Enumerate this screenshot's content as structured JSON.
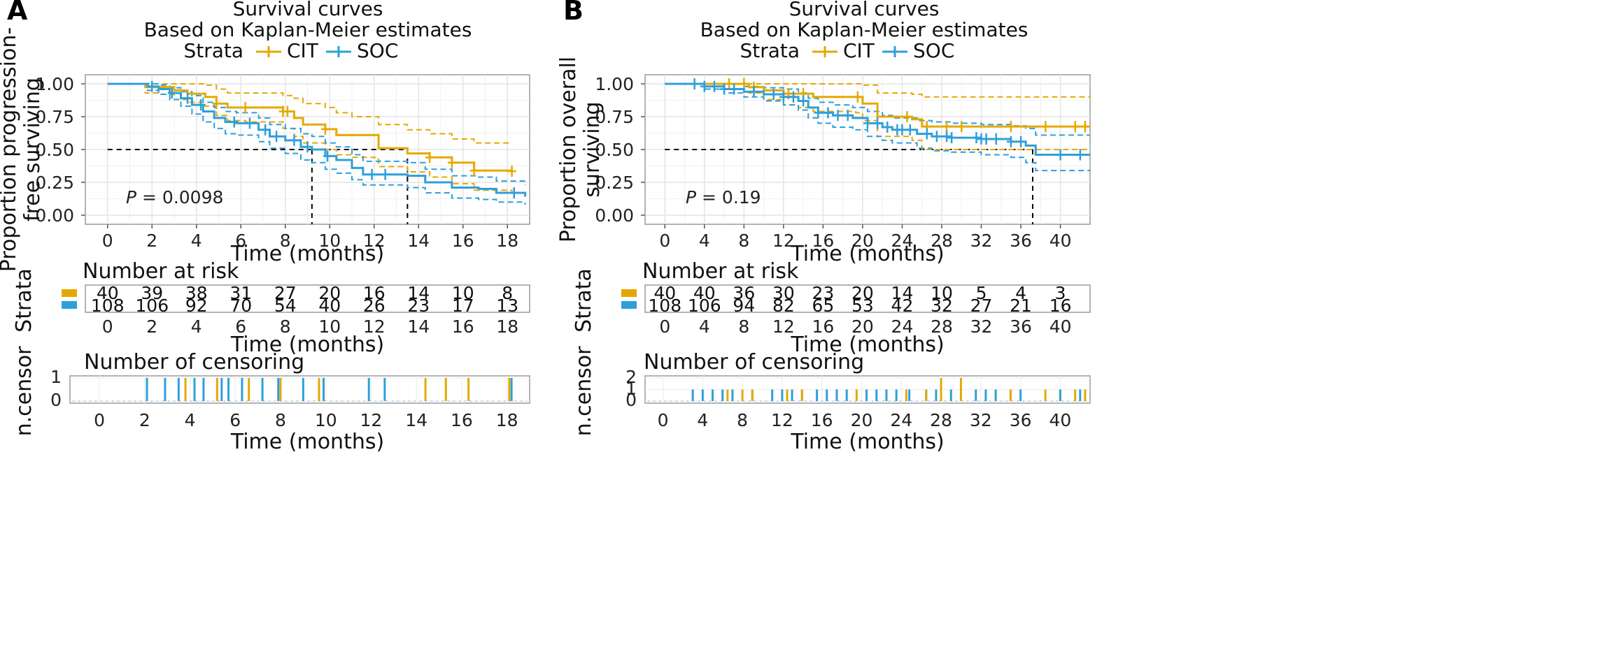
{
  "colors": {
    "CIT": "#E6A800",
    "SOC": "#2E9FDA",
    "grid": "#E4E4E4",
    "frame": "#9A9A9A",
    "ref": "#000000"
  },
  "panels": [
    {
      "letter": "A",
      "title1": "Survival curves",
      "title2": "Based on Kaplan-Meier estimates",
      "legend": {
        "label": "Strata",
        "items": [
          "CIT",
          "SOC"
        ]
      },
      "ylabel_line1": "Proportion progression-",
      "ylabel_line2": "free surviving",
      "xlabel": "Time (months)",
      "pvalue_label": "P",
      "pvalue_rest": " = 0.0098",
      "yticks": [
        "0.00",
        "0.25",
        "0.50",
        "0.75",
        "1.00"
      ],
      "xticks": [
        "0",
        "2",
        "4",
        "6",
        "8",
        "10",
        "12",
        "14",
        "16",
        "18"
      ],
      "risk_title": "Number at risk",
      "risk_ylabel": "Strata",
      "risk_cit": [
        "40",
        "39",
        "38",
        "31",
        "27",
        "20",
        "16",
        "14",
        "10",
        "8"
      ],
      "risk_soc": [
        "108",
        "106",
        "92",
        "70",
        "54",
        "40",
        "26",
        "23",
        "17",
        "13"
      ],
      "censor_title": "Number of censoring",
      "censor_ylabel": "n.censor",
      "censor_yticks": [
        "0",
        "1"
      ]
    },
    {
      "letter": "B",
      "title1": "Survival curves",
      "title2": "Based on Kaplan-Meier estimates",
      "legend": {
        "label": "Strata",
        "items": [
          "CIT",
          "SOC"
        ]
      },
      "ylabel_line1": "Proportion overall",
      "ylabel_line2": "surviving",
      "xlabel": "Time (months)",
      "pvalue_label": "P",
      "pvalue_rest": " = 0.19",
      "yticks": [
        "0.00",
        "0.25",
        "0.50",
        "0.75",
        "1.00"
      ],
      "xticks": [
        "0",
        "4",
        "8",
        "12",
        "16",
        "20",
        "24",
        "28",
        "32",
        "36",
        "40"
      ],
      "risk_title": "Number at risk",
      "risk_ylabel": "Strata",
      "risk_cit": [
        "40",
        "40",
        "36",
        "30",
        "23",
        "20",
        "14",
        "10",
        "5",
        "4",
        "3"
      ],
      "risk_soc": [
        "108",
        "106",
        "94",
        "82",
        "65",
        "53",
        "42",
        "32",
        "27",
        "21",
        "16"
      ],
      "censor_title": "Number of censoring",
      "censor_ylabel": "n.censor",
      "censor_yticks": [
        "0",
        "1",
        "2"
      ]
    }
  ],
  "chart_data": [
    {
      "type": "line",
      "title": "Survival curves",
      "subtitle": "Based on Kaplan-Meier estimates",
      "xlabel": "Time (months)",
      "ylabel": "Proportion progression-free surviving",
      "xlim": [
        -1,
        19
      ],
      "ylim": [
        0,
        1
      ],
      "median_line": 0.5,
      "medians": {
        "SOC": 9.2,
        "CIT": 13.5
      },
      "series": [
        {
          "name": "CIT",
          "x": [
            0,
            1.7,
            2.4,
            3.0,
            3.6,
            4.4,
            4.9,
            5.4,
            6.2,
            7.9,
            8.4,
            8.8,
            9.8,
            10.3,
            11.0,
            12.2,
            13.5,
            14.5,
            15.5,
            16.5,
            18.2
          ],
          "y": [
            1.0,
            0.975,
            0.975,
            0.95,
            0.925,
            0.9,
            0.85,
            0.82,
            0.82,
            0.79,
            0.74,
            0.69,
            0.655,
            0.61,
            0.61,
            0.51,
            0.47,
            0.44,
            0.4,
            0.34,
            0.335
          ],
          "lower": [
            1.0,
            0.93,
            0.92,
            0.88,
            0.86,
            0.83,
            0.76,
            0.72,
            0.71,
            0.66,
            0.6,
            0.55,
            0.5,
            0.46,
            0.44,
            0.37,
            0.33,
            0.29,
            0.24,
            0.19,
            0.18
          ],
          "upper": [
            1.0,
            1.0,
            1.0,
            1.0,
            1.0,
            0.99,
            0.96,
            0.93,
            0.93,
            0.91,
            0.89,
            0.85,
            0.82,
            0.78,
            0.75,
            0.69,
            0.65,
            0.62,
            0.58,
            0.55,
            0.55
          ]
        },
        {
          "name": "SOC",
          "x": [
            0,
            1.8,
            2.3,
            2.8,
            3.3,
            3.8,
            4.3,
            4.8,
            5.3,
            5.8,
            6.8,
            7.3,
            8.0,
            8.7,
            9.2,
            9.8,
            10.3,
            11.0,
            11.5,
            13.5,
            14.3,
            15.5,
            16.7,
            17.5,
            18.8
          ],
          "y": [
            1.0,
            0.98,
            0.96,
            0.93,
            0.89,
            0.84,
            0.79,
            0.74,
            0.71,
            0.7,
            0.65,
            0.6,
            0.57,
            0.52,
            0.5,
            0.45,
            0.42,
            0.36,
            0.31,
            0.3,
            0.25,
            0.21,
            0.2,
            0.17,
            0.14
          ],
          "lower": [
            1.0,
            0.95,
            0.92,
            0.88,
            0.83,
            0.77,
            0.71,
            0.66,
            0.62,
            0.61,
            0.56,
            0.51,
            0.47,
            0.42,
            0.4,
            0.35,
            0.32,
            0.27,
            0.23,
            0.21,
            0.17,
            0.13,
            0.12,
            0.1,
            0.08
          ],
          "upper": [
            1.0,
            1.0,
            0.99,
            0.97,
            0.94,
            0.91,
            0.86,
            0.82,
            0.79,
            0.78,
            0.74,
            0.69,
            0.66,
            0.62,
            0.6,
            0.55,
            0.52,
            0.46,
            0.41,
            0.4,
            0.35,
            0.3,
            0.29,
            0.26,
            0.23
          ]
        }
      ],
      "censor_marks": {
        "CIT": [
          4.9,
          6.2,
          7.9,
          8.1,
          9.8,
          14.5,
          15.5,
          16.5,
          18.2
        ],
        "SOC": [
          2.0,
          2.9,
          3.6,
          4.2,
          5.7,
          6.4,
          7.1,
          7.6,
          8.4,
          9.0,
          9.9,
          11.9,
          12.5,
          18.3
        ]
      },
      "censor_counts": {
        "CIT": {
          "x": [
            3.8,
            5.2,
            6.6,
            8.0,
            9.7,
            14.4,
            15.3,
            16.3,
            18.1
          ],
          "n": [
            1,
            1,
            1,
            1,
            1,
            1,
            1,
            1,
            1
          ]
        },
        "SOC": [
          {
            "x": 2.1,
            "n": 1
          },
          {
            "x": 2.9,
            "n": 1
          },
          {
            "x": 3.5,
            "n": 1
          },
          {
            "x": 4.2,
            "n": 1
          },
          {
            "x": 4.6,
            "n": 1
          },
          {
            "x": 5.4,
            "n": 1
          },
          {
            "x": 5.7,
            "n": 1
          },
          {
            "x": 6.3,
            "n": 1
          },
          {
            "x": 7.2,
            "n": 1
          },
          {
            "x": 7.9,
            "n": 1
          },
          {
            "x": 9.0,
            "n": 1
          },
          {
            "x": 9.9,
            "n": 1
          },
          {
            "x": 11.9,
            "n": 1
          },
          {
            "x": 12.6,
            "n": 1
          },
          {
            "x": 18.2,
            "n": 1
          }
        ]
      }
    },
    {
      "type": "line",
      "title": "Survival curves",
      "subtitle": "Based on Kaplan-Meier estimates",
      "xlabel": "Time (months)",
      "ylabel": "Proportion overall surviving",
      "xlim": [
        -2,
        43
      ],
      "ylim": [
        0,
        1
      ],
      "median_line": 0.5,
      "medians": {
        "SOC": 37.2
      },
      "series": [
        {
          "name": "CIT",
          "x": [
            0,
            8.5,
            10.0,
            12.0,
            13.5,
            15.0,
            19.3,
            20.0,
            21.5,
            25.0,
            26.0,
            43
          ],
          "y": [
            1.0,
            0.975,
            0.95,
            0.925,
            0.925,
            0.9,
            0.9,
            0.85,
            0.75,
            0.73,
            0.675,
            0.675
          ],
          "lower": [
            1.0,
            0.93,
            0.88,
            0.84,
            0.82,
            0.79,
            0.78,
            0.72,
            0.6,
            0.57,
            0.5,
            0.5
          ],
          "upper": [
            1.0,
            1.0,
            1.0,
            1.0,
            1.0,
            1.0,
            1.0,
            0.99,
            0.93,
            0.92,
            0.9,
            0.9
          ]
        },
        {
          "name": "SOC",
          "x": [
            0,
            4,
            6,
            8,
            10,
            12,
            13.5,
            14.5,
            15.5,
            17.0,
            19.0,
            20.5,
            22.0,
            23.0,
            25.5,
            27.0,
            29.0,
            32.0,
            35.0,
            36.5,
            37.5,
            43
          ],
          "y": [
            1.0,
            0.98,
            0.96,
            0.94,
            0.92,
            0.9,
            0.87,
            0.82,
            0.78,
            0.76,
            0.74,
            0.7,
            0.67,
            0.65,
            0.62,
            0.6,
            0.59,
            0.58,
            0.56,
            0.53,
            0.46,
            0.46
          ],
          "lower": [
            1.0,
            0.96,
            0.93,
            0.9,
            0.87,
            0.84,
            0.8,
            0.74,
            0.7,
            0.67,
            0.65,
            0.6,
            0.57,
            0.55,
            0.51,
            0.49,
            0.48,
            0.46,
            0.44,
            0.4,
            0.34,
            0.34
          ],
          "upper": [
            1.0,
            1.0,
            1.0,
            0.98,
            0.97,
            0.96,
            0.93,
            0.89,
            0.86,
            0.84,
            0.82,
            0.79,
            0.76,
            0.74,
            0.72,
            0.71,
            0.7,
            0.69,
            0.68,
            0.66,
            0.61,
            0.61
          ]
        }
      ],
      "censor_marks": {
        "CIT": [
          6.5,
          8.0,
          9.0,
          12.5,
          14.0,
          19.5,
          24.5,
          26.5,
          28.5,
          30.0,
          35.0,
          38.5,
          41.5,
          42.5
        ],
        "SOC": [
          3.0,
          4.0,
          5.0,
          6.0,
          7.0,
          9.0,
          11.0,
          12.0,
          13.0,
          14.0,
          15.5,
          16.5,
          17.5,
          18.5,
          20.5,
          21.5,
          22.5,
          23.5,
          24.0,
          24.8,
          26.5,
          27.5,
          28.5,
          29.0,
          31.5,
          32.0,
          32.5,
          33.5,
          35.0,
          36.0,
          40.0,
          42.0
        ]
      },
      "censor_counts": {
        "CIT": [
          {
            "x": 6.5,
            "n": 1
          },
          {
            "x": 8.0,
            "n": 1
          },
          {
            "x": 9.0,
            "n": 1
          },
          {
            "x": 12.5,
            "n": 1
          },
          {
            "x": 14.0,
            "n": 1
          },
          {
            "x": 19.5,
            "n": 1
          },
          {
            "x": 24.5,
            "n": 1
          },
          {
            "x": 26.5,
            "n": 1
          },
          {
            "x": 28.0,
            "n": 2
          },
          {
            "x": 30.0,
            "n": 2
          },
          {
            "x": 35.0,
            "n": 1
          },
          {
            "x": 38.5,
            "n": 1
          },
          {
            "x": 41.5,
            "n": 1
          },
          {
            "x": 42.5,
            "n": 1
          }
        ],
        "SOC": [
          {
            "x": 3.0,
            "n": 1
          },
          {
            "x": 4.0,
            "n": 1
          },
          {
            "x": 5.0,
            "n": 1
          },
          {
            "x": 6.0,
            "n": 1
          },
          {
            "x": 7.0,
            "n": 1
          },
          {
            "x": 9.0,
            "n": 1
          },
          {
            "x": 11.0,
            "n": 1
          },
          {
            "x": 12.0,
            "n": 1
          },
          {
            "x": 13.0,
            "n": 1
          },
          {
            "x": 14.0,
            "n": 1
          },
          {
            "x": 15.5,
            "n": 1
          },
          {
            "x": 16.5,
            "n": 1
          },
          {
            "x": 17.5,
            "n": 1
          },
          {
            "x": 18.5,
            "n": 1
          },
          {
            "x": 20.5,
            "n": 1
          },
          {
            "x": 21.5,
            "n": 1
          },
          {
            "x": 22.5,
            "n": 1
          },
          {
            "x": 23.5,
            "n": 1
          },
          {
            "x": 24.8,
            "n": 1
          },
          {
            "x": 26.5,
            "n": 1
          },
          {
            "x": 27.5,
            "n": 1
          },
          {
            "x": 29.0,
            "n": 1
          },
          {
            "x": 31.5,
            "n": 1
          },
          {
            "x": 32.5,
            "n": 1
          },
          {
            "x": 33.5,
            "n": 1
          },
          {
            "x": 35.0,
            "n": 1
          },
          {
            "x": 36.0,
            "n": 1
          },
          {
            "x": 40.0,
            "n": 1
          },
          {
            "x": 42.0,
            "n": 1
          }
        ]
      }
    }
  ]
}
